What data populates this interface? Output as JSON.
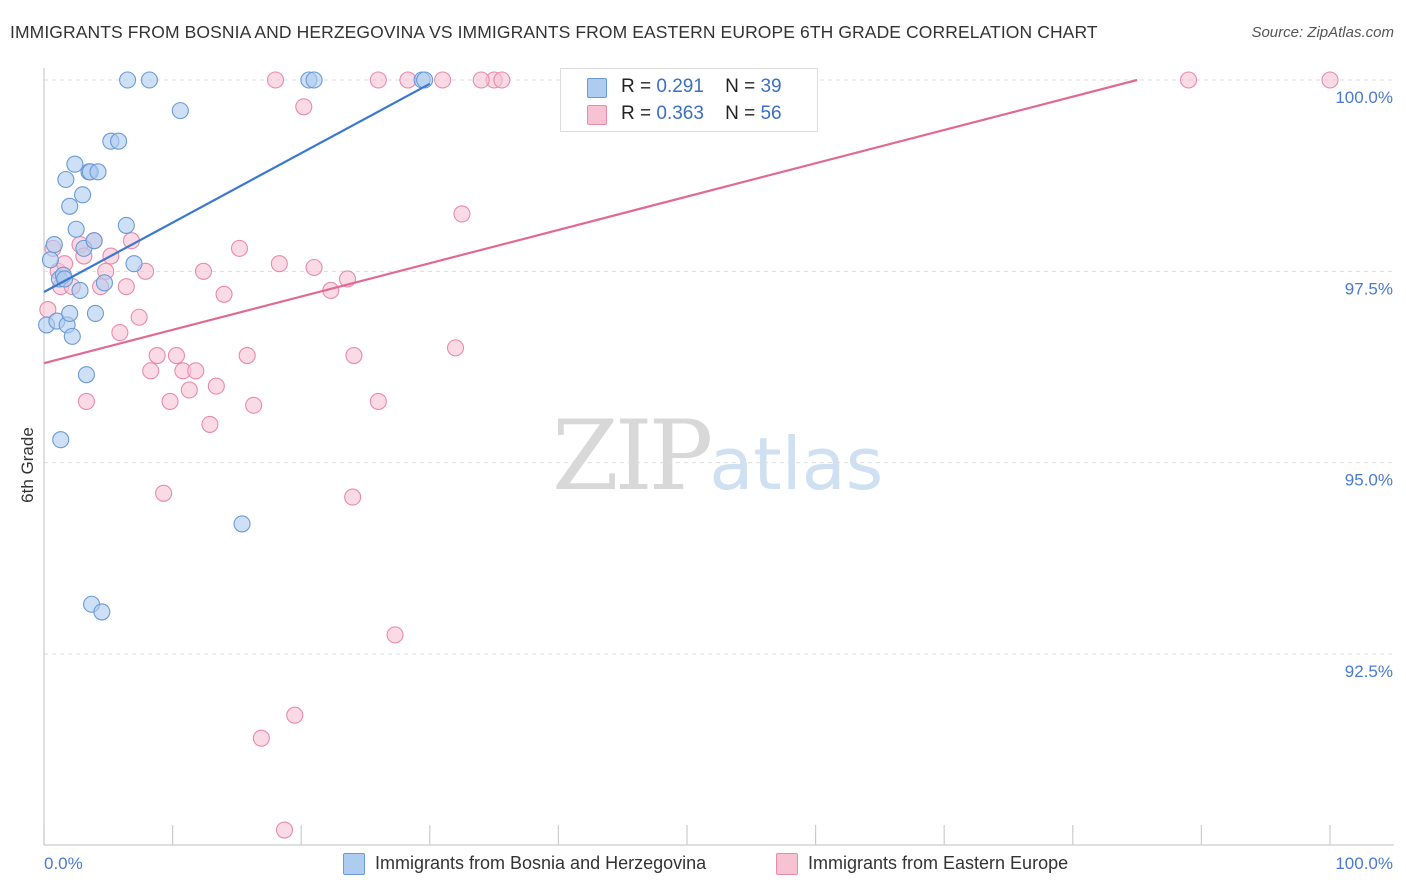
{
  "title": "IMMIGRANTS FROM BOSNIA AND HERZEGOVINA VS IMMIGRANTS FROM EASTERN EUROPE 6TH GRADE CORRELATION CHART",
  "source": "Source: ZipAtlas.com",
  "watermark": {
    "zip": "ZIP",
    "atlas": "atlas"
  },
  "legend": {
    "series1": {
      "r_label": "R =",
      "r_value": "0.291",
      "n_label": "N =",
      "n_value": "39"
    },
    "series2": {
      "r_label": "R =",
      "r_value": "0.363",
      "n_label": "N =",
      "n_value": "56"
    }
  },
  "colors": {
    "blue_fill": "#aecbf0",
    "blue_stroke": "#6b9ad8",
    "blue_line": "#3b78d0",
    "pink_fill": "#f7c3d3",
    "pink_stroke": "#e98aaa",
    "pink_line": "#e06a94",
    "grid": "#dddddd",
    "tick_label": "#4a7bd0"
  },
  "chart_data": {
    "type": "scatter",
    "title": "IMMIGRANTS FROM BOSNIA AND HERZEGOVINA VS IMMIGRANTS FROM EASTERN EUROPE 6TH GRADE CORRELATION CHART",
    "xlabel": "",
    "ylabel": "6th Grade",
    "xlim": [
      0,
      100
    ],
    "ylim": [
      90.0,
      100.25
    ],
    "x_tick_labels": [
      "0.0%",
      "100.0%"
    ],
    "y_ticks": [
      92.5,
      95.0,
      97.5,
      100.0
    ],
    "y_tick_labels": [
      "92.5%",
      "95.0%",
      "97.5%",
      "100.0%"
    ],
    "series": [
      {
        "name": "Immigrants from Bosnia and Herzegovina",
        "color": "blue",
        "trend": {
          "x0": 0.0,
          "y0": 97.23,
          "x1": 30.0,
          "y1": 99.95
        },
        "points": [
          {
            "x": 0.2,
            "y": 96.8
          },
          {
            "x": 0.5,
            "y": 97.65
          },
          {
            "x": 0.8,
            "y": 97.85
          },
          {
            "x": 1.0,
            "y": 96.85
          },
          {
            "x": 1.2,
            "y": 97.4
          },
          {
            "x": 1.3,
            "y": 95.3
          },
          {
            "x": 1.5,
            "y": 97.45
          },
          {
            "x": 1.6,
            "y": 97.4
          },
          {
            "x": 1.7,
            "y": 98.7
          },
          {
            "x": 1.8,
            "y": 96.8
          },
          {
            "x": 2.0,
            "y": 98.35
          },
          {
            "x": 2.0,
            "y": 96.95
          },
          {
            "x": 2.2,
            "y": 96.65
          },
          {
            "x": 2.4,
            "y": 98.9
          },
          {
            "x": 2.5,
            "y": 98.05
          },
          {
            "x": 2.8,
            "y": 97.25
          },
          {
            "x": 3.0,
            "y": 98.5
          },
          {
            "x": 3.1,
            "y": 97.8
          },
          {
            "x": 3.3,
            "y": 96.15
          },
          {
            "x": 3.5,
            "y": 98.8
          },
          {
            "x": 3.6,
            "y": 98.8
          },
          {
            "x": 3.7,
            "y": 93.15
          },
          {
            "x": 3.9,
            "y": 97.9
          },
          {
            "x": 4.0,
            "y": 96.95
          },
          {
            "x": 4.2,
            "y": 98.8
          },
          {
            "x": 4.5,
            "y": 93.05
          },
          {
            "x": 4.7,
            "y": 97.35
          },
          {
            "x": 5.2,
            "y": 99.2
          },
          {
            "x": 5.8,
            "y": 99.2
          },
          {
            "x": 6.4,
            "y": 98.1
          },
          {
            "x": 6.5,
            "y": 100.0
          },
          {
            "x": 7.0,
            "y": 97.6
          },
          {
            "x": 8.2,
            "y": 100.0
          },
          {
            "x": 10.6,
            "y": 99.6
          },
          {
            "x": 15.4,
            "y": 94.2
          },
          {
            "x": 20.6,
            "y": 100.0
          },
          {
            "x": 21.0,
            "y": 100.0
          },
          {
            "x": 29.4,
            "y": 100.0
          },
          {
            "x": 29.6,
            "y": 100.0
          }
        ]
      },
      {
        "name": "Immigrants from Eastern Europe",
        "color": "pink",
        "trend": {
          "x0": 0.0,
          "y0": 96.3,
          "x1": 85.0,
          "y1": 100.0
        },
        "points": [
          {
            "x": 0.3,
            "y": 97.0
          },
          {
            "x": 0.7,
            "y": 97.8
          },
          {
            "x": 1.1,
            "y": 97.5
          },
          {
            "x": 1.3,
            "y": 97.3
          },
          {
            "x": 1.6,
            "y": 97.6
          },
          {
            "x": 2.2,
            "y": 97.3
          },
          {
            "x": 2.8,
            "y": 97.85
          },
          {
            "x": 3.1,
            "y": 97.7
          },
          {
            "x": 3.3,
            "y": 95.8
          },
          {
            "x": 3.9,
            "y": 97.9
          },
          {
            "x": 4.4,
            "y": 97.3
          },
          {
            "x": 4.8,
            "y": 97.5
          },
          {
            "x": 5.2,
            "y": 97.7
          },
          {
            "x": 5.9,
            "y": 96.7
          },
          {
            "x": 6.4,
            "y": 97.3
          },
          {
            "x": 6.8,
            "y": 97.9
          },
          {
            "x": 7.4,
            "y": 96.9
          },
          {
            "x": 7.9,
            "y": 97.5
          },
          {
            "x": 8.3,
            "y": 96.2
          },
          {
            "x": 8.8,
            "y": 96.4
          },
          {
            "x": 9.3,
            "y": 94.6
          },
          {
            "x": 9.8,
            "y": 95.8
          },
          {
            "x": 10.3,
            "y": 96.4
          },
          {
            "x": 10.8,
            "y": 96.2
          },
          {
            "x": 11.3,
            "y": 95.95
          },
          {
            "x": 11.8,
            "y": 96.2
          },
          {
            "x": 12.4,
            "y": 97.5
          },
          {
            "x": 12.9,
            "y": 95.5
          },
          {
            "x": 13.4,
            "y": 96.0
          },
          {
            "x": 14.0,
            "y": 97.2
          },
          {
            "x": 15.2,
            "y": 97.8
          },
          {
            "x": 15.8,
            "y": 96.4
          },
          {
            "x": 16.3,
            "y": 95.75
          },
          {
            "x": 16.9,
            "y": 91.4
          },
          {
            "x": 18.3,
            "y": 97.6
          },
          {
            "x": 18.7,
            "y": 90.2
          },
          {
            "x": 19.5,
            "y": 91.7
          },
          {
            "x": 20.2,
            "y": 99.65
          },
          {
            "x": 21.0,
            "y": 97.55
          },
          {
            "x": 22.3,
            "y": 97.25
          },
          {
            "x": 23.6,
            "y": 97.4
          },
          {
            "x": 24.1,
            "y": 96.4
          },
          {
            "x": 26.0,
            "y": 95.8
          },
          {
            "x": 27.3,
            "y": 92.75
          },
          {
            "x": 28.3,
            "y": 100.0
          },
          {
            "x": 32.0,
            "y": 96.5
          },
          {
            "x": 32.5,
            "y": 98.25
          },
          {
            "x": 24.0,
            "y": 94.55
          },
          {
            "x": 18.0,
            "y": 100.0
          },
          {
            "x": 26.0,
            "y": 100.0
          },
          {
            "x": 35.0,
            "y": 100.0
          },
          {
            "x": 34.0,
            "y": 100.0
          },
          {
            "x": 35.6,
            "y": 100.0
          },
          {
            "x": 89.0,
            "y": 100.0
          },
          {
            "x": 100.0,
            "y": 100.0
          },
          {
            "x": 31.0,
            "y": 100.0
          }
        ]
      }
    ]
  },
  "bottom_legend": {
    "series1_label": "Immigrants from Bosnia and Herzegovina",
    "series2_label": "Immigrants from Eastern Europe"
  }
}
